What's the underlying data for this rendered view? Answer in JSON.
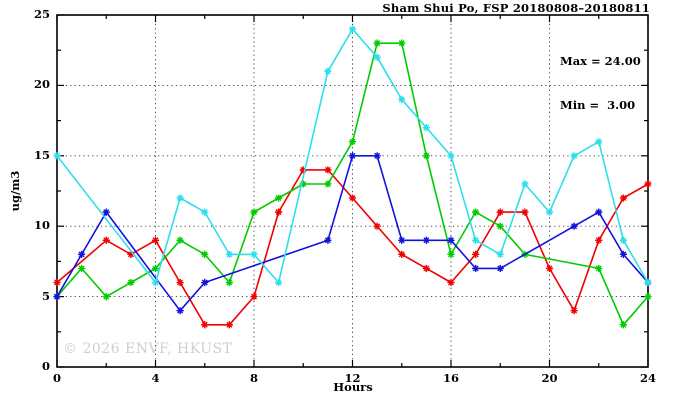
{
  "chart_data": {
    "type": "line",
    "title": "Sham Shui Po, FSP 20180808–20180811",
    "xlabel": "Hours",
    "ylabel": "ug/m3",
    "watermark": "© 2026 ENVF, HKUST",
    "annotations": {
      "max_label": "Max = 24.00",
      "min_label": "Min =  3.00"
    },
    "xlim": [
      0,
      24
    ],
    "ylim": [
      0,
      25
    ],
    "x_ticks": [
      0,
      4,
      8,
      12,
      16,
      20,
      24
    ],
    "x_minor_ticks": [
      2,
      6,
      10,
      14,
      18,
      22
    ],
    "y_ticks": [
      0,
      5,
      10,
      15,
      20,
      25
    ],
    "y_minor_ticks": [
      2.5,
      7.5,
      12.5,
      17.5,
      22.5
    ],
    "grid": "dotted lines at major ticks, no legend, framed plot with inward ticks on all sides",
    "x": [
      0,
      1,
      2,
      3,
      4,
      5,
      6,
      7,
      8,
      9,
      10,
      11,
      12,
      13,
      14,
      15,
      16,
      17,
      18,
      19,
      20,
      21,
      22,
      23,
      24
    ],
    "series": [
      {
        "name": "red",
        "color": "#f20000",
        "marker": "asterisk",
        "values": [
          6,
          null,
          9,
          8,
          9,
          6,
          3,
          3,
          5,
          11,
          14,
          14,
          12,
          10,
          8,
          7,
          6,
          8,
          11,
          11,
          7,
          4,
          9,
          12,
          13
        ]
      },
      {
        "name": "green",
        "color": "#00cc00",
        "marker": "asterisk",
        "values": [
          5,
          7,
          5,
          6,
          7,
          9,
          8,
          6,
          11,
          12,
          13,
          13,
          16,
          23,
          23,
          15,
          8,
          11,
          10,
          8,
          null,
          null,
          7,
          3,
          5
        ]
      },
      {
        "name": "blue",
        "color": "#1212dd",
        "marker": "asterisk",
        "values": [
          5,
          8,
          11,
          null,
          null,
          4,
          6,
          null,
          null,
          null,
          null,
          9,
          15,
          15,
          9,
          9,
          9,
          7,
          7,
          null,
          null,
          10,
          11,
          8,
          6
        ]
      },
      {
        "name": "cyan",
        "color": "#2edeee",
        "marker": "asterisk",
        "values": [
          15,
          null,
          null,
          null,
          6,
          12,
          11,
          8,
          8,
          6,
          null,
          21,
          24,
          22,
          19,
          17,
          15,
          9,
          8,
          13,
          11,
          15,
          16,
          9,
          6
        ]
      }
    ]
  }
}
